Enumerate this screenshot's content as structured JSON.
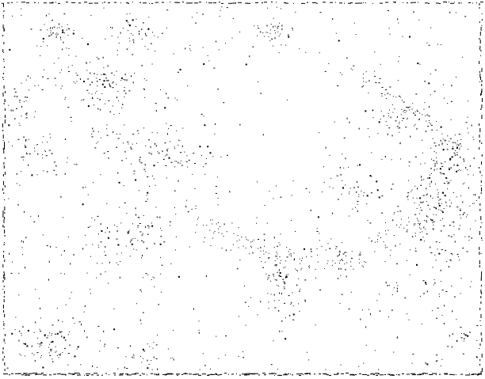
{
  "image": {
    "background_color": "#ffffff",
    "dot_color": "#000000",
    "border_color": "#000000"
  }
}
